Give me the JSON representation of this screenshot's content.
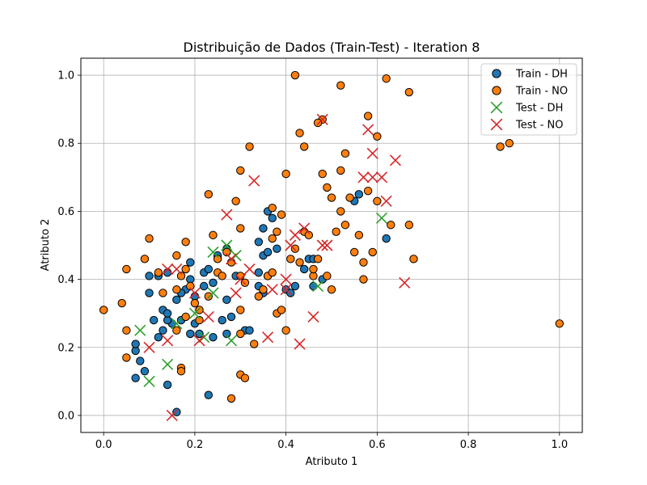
{
  "chart_data": {
    "type": "scatter",
    "title": "Distribuição de Dados (Train-Test) - Iteration 8",
    "xlabel": "Atributo 1",
    "ylabel": "Atributo 2",
    "xlim": [
      -0.05,
      1.05
    ],
    "ylim": [
      -0.05,
      1.05
    ],
    "xticks": [
      "0.0",
      "0.2",
      "0.4",
      "0.6",
      "0.8",
      "1.0"
    ],
    "yticks": [
      "0.0",
      "0.2",
      "0.4",
      "0.6",
      "0.8",
      "1.0"
    ],
    "grid": true,
    "legend_position": "top-right",
    "series": [
      {
        "name": "Train - DH",
        "marker": "circle",
        "color": "#1f77b4",
        "points": [
          [
            0.16,
            0.01
          ],
          [
            0.23,
            0.06
          ],
          [
            0.07,
            0.11
          ],
          [
            0.09,
            0.13
          ],
          [
            0.14,
            0.09
          ],
          [
            0.08,
            0.16
          ],
          [
            0.07,
            0.19
          ],
          [
            0.07,
            0.21
          ],
          [
            0.12,
            0.23
          ],
          [
            0.13,
            0.25
          ],
          [
            0.15,
            0.27
          ],
          [
            0.14,
            0.28
          ],
          [
            0.17,
            0.28
          ],
          [
            0.2,
            0.27
          ],
          [
            0.21,
            0.24
          ],
          [
            0.24,
            0.23
          ],
          [
            0.26,
            0.28
          ],
          [
            0.28,
            0.29
          ],
          [
            0.27,
            0.24
          ],
          [
            0.19,
            0.24
          ],
          [
            0.11,
            0.28
          ],
          [
            0.13,
            0.31
          ],
          [
            0.14,
            0.3
          ],
          [
            0.16,
            0.34
          ],
          [
            0.18,
            0.37
          ],
          [
            0.17,
            0.36
          ],
          [
            0.2,
            0.35
          ],
          [
            0.22,
            0.38
          ],
          [
            0.24,
            0.39
          ],
          [
            0.22,
            0.42
          ],
          [
            0.23,
            0.43
          ],
          [
            0.19,
            0.45
          ],
          [
            0.1,
            0.36
          ],
          [
            0.1,
            0.41
          ],
          [
            0.12,
            0.41
          ],
          [
            0.14,
            0.42
          ],
          [
            0.19,
            0.4
          ],
          [
            0.25,
            0.47
          ],
          [
            0.27,
            0.49
          ],
          [
            0.29,
            0.41
          ],
          [
            0.27,
            0.34
          ],
          [
            0.31,
            0.25
          ],
          [
            0.32,
            0.25
          ],
          [
            0.34,
            0.38
          ],
          [
            0.35,
            0.36
          ],
          [
            0.34,
            0.42
          ],
          [
            0.36,
            0.41
          ],
          [
            0.35,
            0.47
          ],
          [
            0.36,
            0.48
          ],
          [
            0.38,
            0.49
          ],
          [
            0.34,
            0.51
          ],
          [
            0.35,
            0.55
          ],
          [
            0.36,
            0.6
          ],
          [
            0.37,
            0.58
          ],
          [
            0.4,
            0.37
          ],
          [
            0.41,
            0.36
          ],
          [
            0.42,
            0.38
          ],
          [
            0.44,
            0.43
          ],
          [
            0.45,
            0.46
          ],
          [
            0.46,
            0.46
          ],
          [
            0.46,
            0.38
          ],
          [
            0.48,
            0.4
          ],
          [
            0.55,
            0.63
          ],
          [
            0.56,
            0.65
          ],
          [
            0.62,
            0.52
          ]
        ]
      },
      {
        "name": "Train - NO",
        "marker": "circle",
        "color": "#ff7f0e",
        "points": [
          [
            0.0,
            0.31
          ],
          [
            0.04,
            0.33
          ],
          [
            0.05,
            0.25
          ],
          [
            0.05,
            0.17
          ],
          [
            0.05,
            0.43
          ],
          [
            0.09,
            0.46
          ],
          [
            0.1,
            0.52
          ],
          [
            0.12,
            0.42
          ],
          [
            0.13,
            0.36
          ],
          [
            0.16,
            0.37
          ],
          [
            0.17,
            0.41
          ],
          [
            0.16,
            0.47
          ],
          [
            0.18,
            0.51
          ],
          [
            0.18,
            0.43
          ],
          [
            0.19,
            0.38
          ],
          [
            0.2,
            0.33
          ],
          [
            0.18,
            0.29
          ],
          [
            0.16,
            0.25
          ],
          [
            0.17,
            0.14
          ],
          [
            0.17,
            0.13
          ],
          [
            0.21,
            0.31
          ],
          [
            0.21,
            0.28
          ],
          [
            0.23,
            0.35
          ],
          [
            0.24,
            0.53
          ],
          [
            0.23,
            0.65
          ],
          [
            0.25,
            0.46
          ],
          [
            0.25,
            0.42
          ],
          [
            0.26,
            0.41
          ],
          [
            0.27,
            0.48
          ],
          [
            0.28,
            0.45
          ],
          [
            0.29,
            0.63
          ],
          [
            0.3,
            0.55
          ],
          [
            0.3,
            0.72
          ],
          [
            0.32,
            0.79
          ],
          [
            0.3,
            0.41
          ],
          [
            0.31,
            0.39
          ],
          [
            0.3,
            0.31
          ],
          [
            0.3,
            0.24
          ],
          [
            0.3,
            0.12
          ],
          [
            0.31,
            0.11
          ],
          [
            0.28,
            0.05
          ],
          [
            0.33,
            0.21
          ],
          [
            0.34,
            0.35
          ],
          [
            0.35,
            0.37
          ],
          [
            0.36,
            0.41
          ],
          [
            0.37,
            0.42
          ],
          [
            0.37,
            0.52
          ],
          [
            0.38,
            0.54
          ],
          [
            0.39,
            0.59
          ],
          [
            0.37,
            0.61
          ],
          [
            0.4,
            0.71
          ],
          [
            0.42,
            1.0
          ],
          [
            0.43,
            0.83
          ],
          [
            0.44,
            0.79
          ],
          [
            0.38,
            0.3
          ],
          [
            0.39,
            0.31
          ],
          [
            0.4,
            0.25
          ],
          [
            0.41,
            0.46
          ],
          [
            0.42,
            0.49
          ],
          [
            0.43,
            0.45
          ],
          [
            0.44,
            0.54
          ],
          [
            0.45,
            0.53
          ],
          [
            0.46,
            0.41
          ],
          [
            0.46,
            0.43
          ],
          [
            0.47,
            0.46
          ],
          [
            0.48,
            0.87
          ],
          [
            0.47,
            0.86
          ],
          [
            0.48,
            0.71
          ],
          [
            0.49,
            0.67
          ],
          [
            0.5,
            0.64
          ],
          [
            0.49,
            0.41
          ],
          [
            0.5,
            0.37
          ],
          [
            0.51,
            0.54
          ],
          [
            0.52,
            0.6
          ],
          [
            0.53,
            0.56
          ],
          [
            0.52,
            0.72
          ],
          [
            0.53,
            0.77
          ],
          [
            0.52,
            0.97
          ],
          [
            0.54,
            0.64
          ],
          [
            0.55,
            0.48
          ],
          [
            0.56,
            0.53
          ],
          [
            0.57,
            0.45
          ],
          [
            0.57,
            0.4
          ],
          [
            0.58,
            0.66
          ],
          [
            0.59,
            0.48
          ],
          [
            0.6,
            0.63
          ],
          [
            0.6,
            0.82
          ],
          [
            0.58,
            0.88
          ],
          [
            0.62,
            0.99
          ],
          [
            0.63,
            0.56
          ],
          [
            0.67,
            0.56
          ],
          [
            0.67,
            0.95
          ],
          [
            0.68,
            0.46
          ],
          [
            0.87,
            0.79
          ],
          [
            0.89,
            0.8
          ],
          [
            1.0,
            0.27
          ]
        ]
      },
      {
        "name": "Test - DH",
        "marker": "x",
        "color": "#2ca02c",
        "points": [
          [
            0.08,
            0.25
          ],
          [
            0.1,
            0.1
          ],
          [
            0.14,
            0.15
          ],
          [
            0.16,
            0.27
          ],
          [
            0.2,
            0.3
          ],
          [
            0.22,
            0.23
          ],
          [
            0.24,
            0.36
          ],
          [
            0.24,
            0.48
          ],
          [
            0.27,
            0.5
          ],
          [
            0.28,
            0.22
          ],
          [
            0.29,
            0.47
          ],
          [
            0.47,
            0.38
          ],
          [
            0.61,
            0.58
          ]
        ]
      },
      {
        "name": "Test - NO",
        "marker": "x",
        "color": "#d62728",
        "points": [
          [
            0.15,
            0.0
          ],
          [
            0.14,
            0.22
          ],
          [
            0.14,
            0.43
          ],
          [
            0.1,
            0.2
          ],
          [
            0.16,
            0.43
          ],
          [
            0.2,
            0.36
          ],
          [
            0.21,
            0.22
          ],
          [
            0.23,
            0.29
          ],
          [
            0.27,
            0.59
          ],
          [
            0.28,
            0.46
          ],
          [
            0.29,
            0.36
          ],
          [
            0.3,
            0.4
          ],
          [
            0.32,
            0.43
          ],
          [
            0.33,
            0.69
          ],
          [
            0.36,
            0.23
          ],
          [
            0.37,
            0.37
          ],
          [
            0.4,
            0.37
          ],
          [
            0.4,
            0.4
          ],
          [
            0.41,
            0.5
          ],
          [
            0.42,
            0.53
          ],
          [
            0.43,
            0.21
          ],
          [
            0.44,
            0.55
          ],
          [
            0.46,
            0.29
          ],
          [
            0.48,
            0.5
          ],
          [
            0.48,
            0.87
          ],
          [
            0.49,
            0.5
          ],
          [
            0.57,
            0.7
          ],
          [
            0.58,
            0.84
          ],
          [
            0.59,
            0.77
          ],
          [
            0.59,
            0.7
          ],
          [
            0.61,
            0.7
          ],
          [
            0.62,
            0.63
          ],
          [
            0.64,
            0.75
          ],
          [
            0.66,
            0.39
          ]
        ]
      }
    ]
  }
}
